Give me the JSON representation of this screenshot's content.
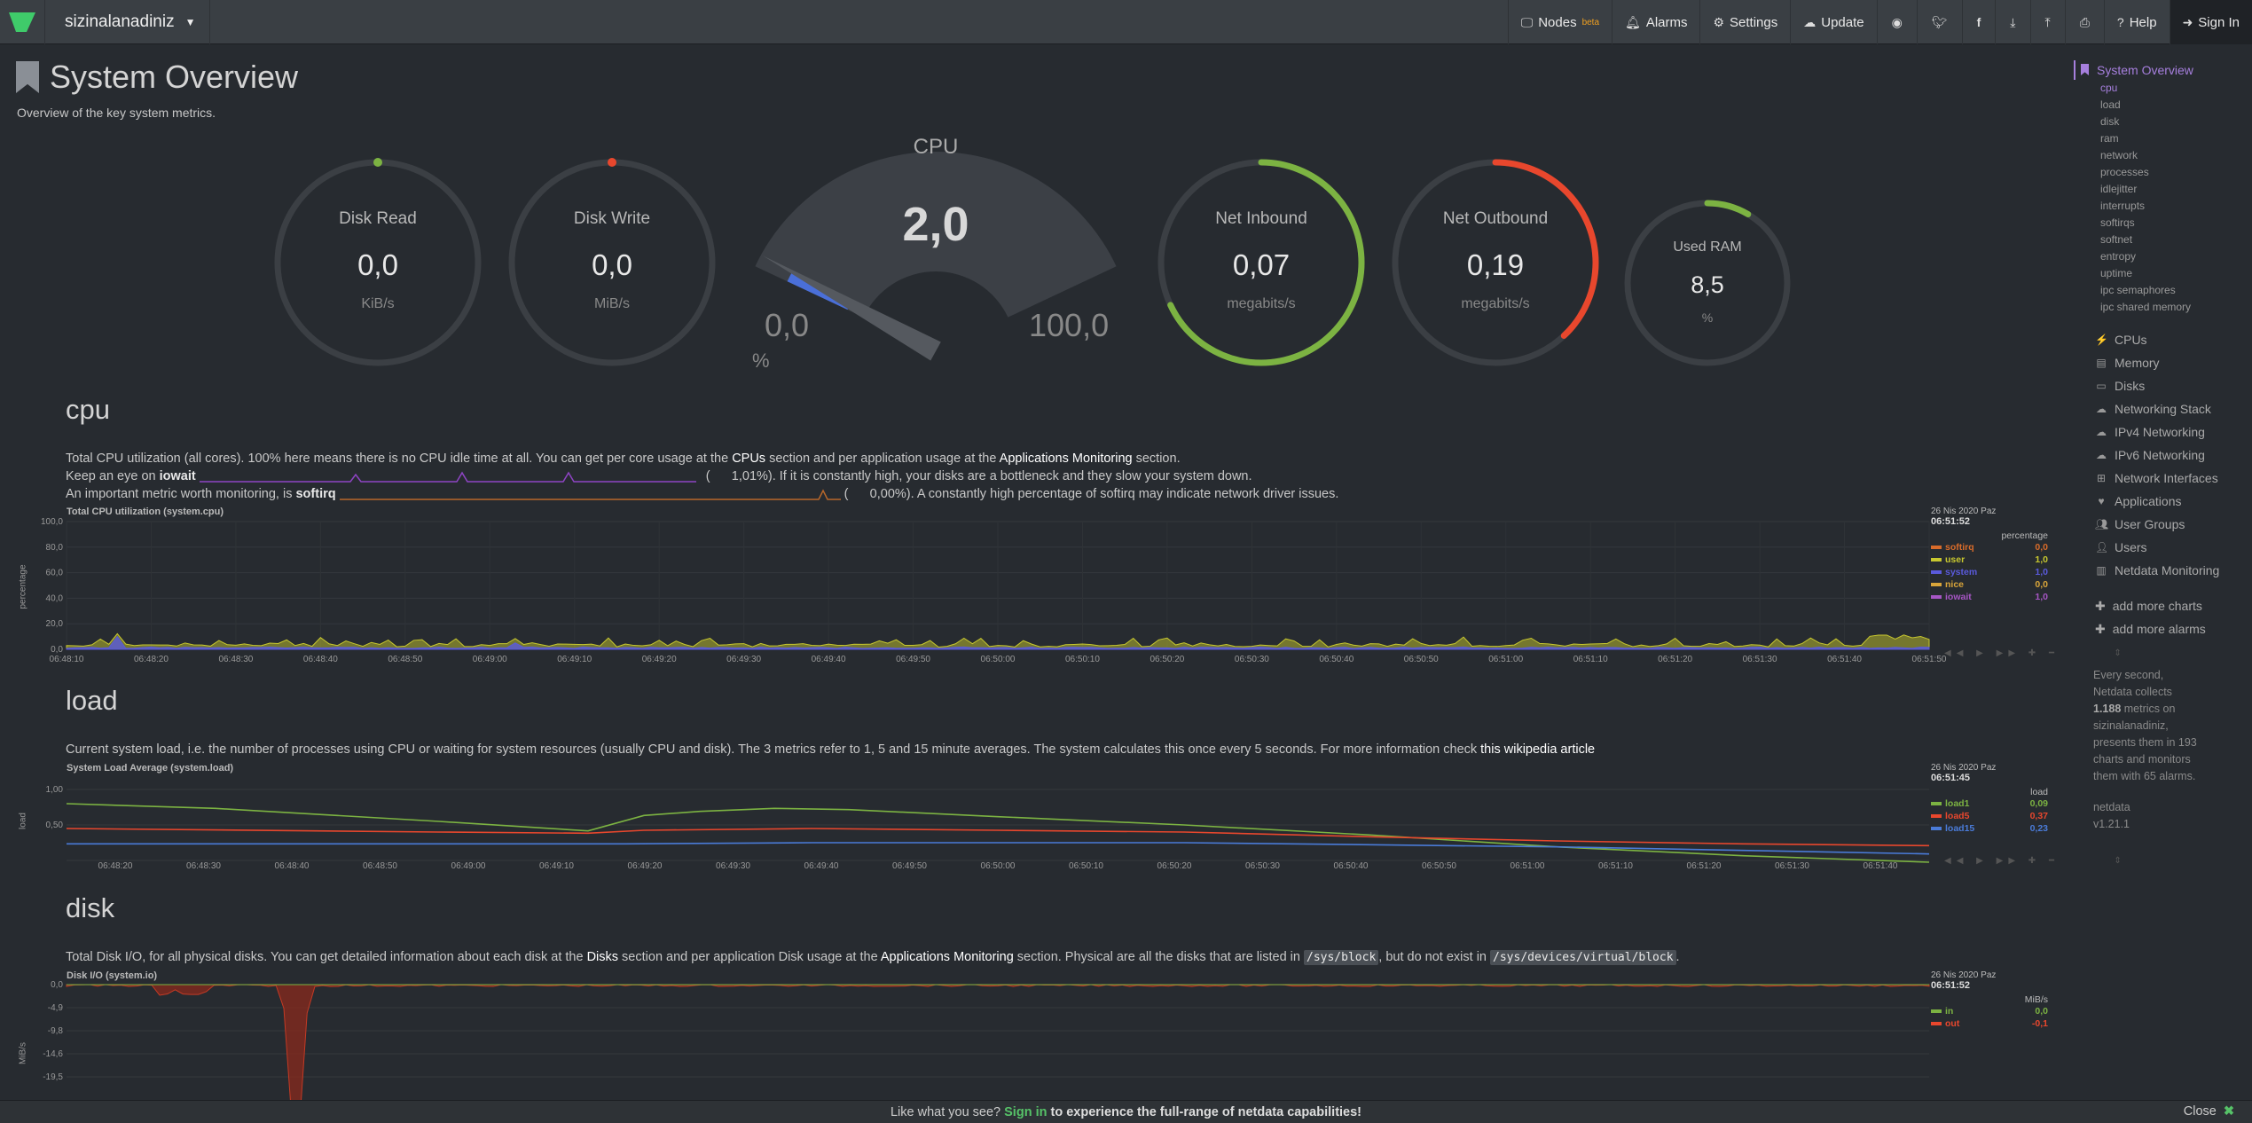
{
  "header": {
    "hostname": "sizinalanadiniz",
    "nav": [
      {
        "id": "nodes",
        "label": "Nodes",
        "badge": "beta",
        "icon": "monitor-icon"
      },
      {
        "id": "alarms",
        "label": "Alarms",
        "icon": "bell-icon"
      },
      {
        "id": "settings",
        "label": "Settings",
        "icon": "gear-icon"
      },
      {
        "id": "update",
        "label": "Update",
        "icon": "cloud-download-icon"
      }
    ],
    "help_label": "Help",
    "signin_label": "Sign In"
  },
  "page": {
    "title": "System Overview",
    "description": "Overview of the key system metrics."
  },
  "gauges": {
    "disk_read": {
      "label": "Disk Read",
      "value": "0,0",
      "unit": "KiB/s",
      "fraction": 0.0,
      "color": "#7cb342"
    },
    "disk_write": {
      "label": "Disk Write",
      "value": "0,0",
      "unit": "MiB/s",
      "fraction": 0.0,
      "color": "#e8472d"
    },
    "cpu": {
      "label": "CPU",
      "value": "2,0",
      "min": "0,0",
      "max": "100,0",
      "unit": "%",
      "fraction": 0.02
    },
    "net_in": {
      "label": "Net Inbound",
      "value": "0,07",
      "unit": "megabits/s",
      "fraction": 0.68,
      "color": "#7cb342"
    },
    "net_out": {
      "label": "Net Outbound",
      "value": "0,19",
      "unit": "megabits/s",
      "fraction": 0.38,
      "color": "#e8472d"
    },
    "ram": {
      "label": "Used RAM",
      "value": "8,5",
      "unit": "%",
      "fraction": 0.085,
      "color": "#7cb342"
    }
  },
  "cpu_section": {
    "heading": "cpu",
    "line1_a": "Total CPU utilization (all cores). 100% here means there is no CPU idle time at all. You can get per core usage at the ",
    "line1_link1": "CPUs",
    "line1_b": " section and per application usage at the ",
    "line1_link2": "Applications Monitoring",
    "line1_c": " section.",
    "line2_a": "Keep an eye on ",
    "line2_b": "iowait",
    "line2_c": "1,01%). If it is constantly high, your disks are a bottleneck and they slow your system down.",
    "line3_a": "An important metric worth monitoring, is ",
    "line3_b": "softirq",
    "line3_c": "0,00%). A constantly high percentage of softirq may indicate network driver issues.",
    "chart_title": "Total CPU utilization (system.cpu)",
    "ylabel": "percentage",
    "date": "26 Nis 2020 Paz",
    "time": "06:51:52",
    "legend_unit": "percentage",
    "legend": [
      {
        "name": "softirq",
        "value": "0,0",
        "color": "#d86b2a"
      },
      {
        "name": "user",
        "value": "1,0",
        "color": "#c7c72f"
      },
      {
        "name": "system",
        "value": "1,0",
        "color": "#5a5adc"
      },
      {
        "name": "nice",
        "value": "0,0",
        "color": "#d9a53a"
      },
      {
        "name": "iowait",
        "value": "1,0",
        "color": "#a656c4"
      }
    ],
    "yticks": [
      "100,0",
      "80,0",
      "60,0",
      "40,0",
      "20,0",
      "0,0"
    ],
    "xticks": [
      "06:48:10",
      "06:48:20",
      "06:48:30",
      "06:48:40",
      "06:48:50",
      "06:49:00",
      "06:49:10",
      "06:49:20",
      "06:49:30",
      "06:49:40",
      "06:49:50",
      "06:50:00",
      "06:50:10",
      "06:50:20",
      "06:50:30",
      "06:50:40",
      "06:50:50",
      "06:51:00",
      "06:51:10",
      "06:51:20",
      "06:51:30",
      "06:51:40",
      "06:51:50"
    ]
  },
  "load_section": {
    "heading": "load",
    "desc_a": "Current system load, i.e. the number of processes using CPU or waiting for system resources (usually CPU and disk). The 3 metrics refer to 1, 5 and 15 minute averages. The system calculates this once every 5 seconds. For more information check ",
    "desc_link": "this wikipedia article",
    "chart_title": "System Load Average (system.load)",
    "ylabel": "load",
    "date": "26 Nis 2020 Paz",
    "time": "06:51:45",
    "legend_unit": "load",
    "legend": [
      {
        "name": "load1",
        "value": "0,09",
        "color": "#7cb342"
      },
      {
        "name": "load5",
        "value": "0,37",
        "color": "#e8472d"
      },
      {
        "name": "load15",
        "value": "0,23",
        "color": "#4a7bd8"
      }
    ],
    "yticks": [
      "1,00",
      "0,50"
    ],
    "xticks": [
      "06:48:20",
      "06:48:30",
      "06:48:40",
      "06:48:50",
      "06:49:00",
      "06:49:10",
      "06:49:20",
      "06:49:30",
      "06:49:40",
      "06:49:50",
      "06:50:00",
      "06:50:10",
      "06:50:20",
      "06:50:30",
      "06:50:40",
      "06:50:50",
      "06:51:00",
      "06:51:10",
      "06:51:20",
      "06:51:30",
      "06:51:40"
    ]
  },
  "disk_section": {
    "heading": "disk",
    "desc_a": "Total Disk I/O, for all physical disks. You can get detailed information about each disk at the ",
    "desc_link1": "Disks",
    "desc_b": " section and per application Disk usage at the ",
    "desc_link2": "Applications Monitoring",
    "desc_c": " section. Physical are all the disks that are listed in ",
    "desc_code1": "/sys/block",
    "desc_d": ", but do not exist in ",
    "desc_code2": "/sys/devices/virtual/block",
    "desc_e": ".",
    "chart_title": "Disk I/O (system.io)",
    "ylabel": "MiB/s",
    "date": "26 Nis 2020 Paz",
    "time": "06:51:52",
    "legend_unit": "MiB/s",
    "legend": [
      {
        "name": "in",
        "value": "0,0",
        "color": "#7cb342"
      },
      {
        "name": "out",
        "value": "-0,1",
        "color": "#e8472d"
      }
    ],
    "yticks": [
      "0,0",
      "-4,9",
      "-9,8",
      "-14,6",
      "-19,5"
    ]
  },
  "sidebar": {
    "active": "System Overview",
    "subs": [
      "cpu",
      "load",
      "disk",
      "ram",
      "network",
      "processes",
      "idlejitter",
      "interrupts",
      "softirqs",
      "softnet",
      "entropy",
      "uptime",
      "ipc semaphores",
      "ipc shared memory"
    ],
    "items": [
      {
        "label": "CPUs",
        "icon": "bolt-icon"
      },
      {
        "label": "Memory",
        "icon": "memory-icon"
      },
      {
        "label": "Disks",
        "icon": "hdd-icon"
      },
      {
        "label": "Networking Stack",
        "icon": "cloud-icon"
      },
      {
        "label": "IPv4 Networking",
        "icon": "cloud-icon"
      },
      {
        "label": "IPv6 Networking",
        "icon": "cloud-icon"
      },
      {
        "label": "Network Interfaces",
        "icon": "sitemap-icon"
      },
      {
        "label": "Applications",
        "icon": "heartbeat-icon"
      },
      {
        "label": "User Groups",
        "icon": "users-icon"
      },
      {
        "label": "Users",
        "icon": "user-icon"
      },
      {
        "label": "Netdata Monitoring",
        "icon": "bar-chart-icon"
      }
    ],
    "add_charts": "add more charts",
    "add_alarms": "add more alarms",
    "info_a": "Every second, Netdata collects ",
    "info_metrics": "1.188",
    "info_b": " metrics on sizinalanadiniz, presents them in 193 charts and monitors them with 65 alarms.",
    "brand": "netdata",
    "version": "v1.21.1"
  },
  "footer": {
    "text_a": "Like what you see? ",
    "signin": "Sign in",
    "text_b": " to experience the full-range of netdata capabilities!",
    "close": "Close"
  }
}
